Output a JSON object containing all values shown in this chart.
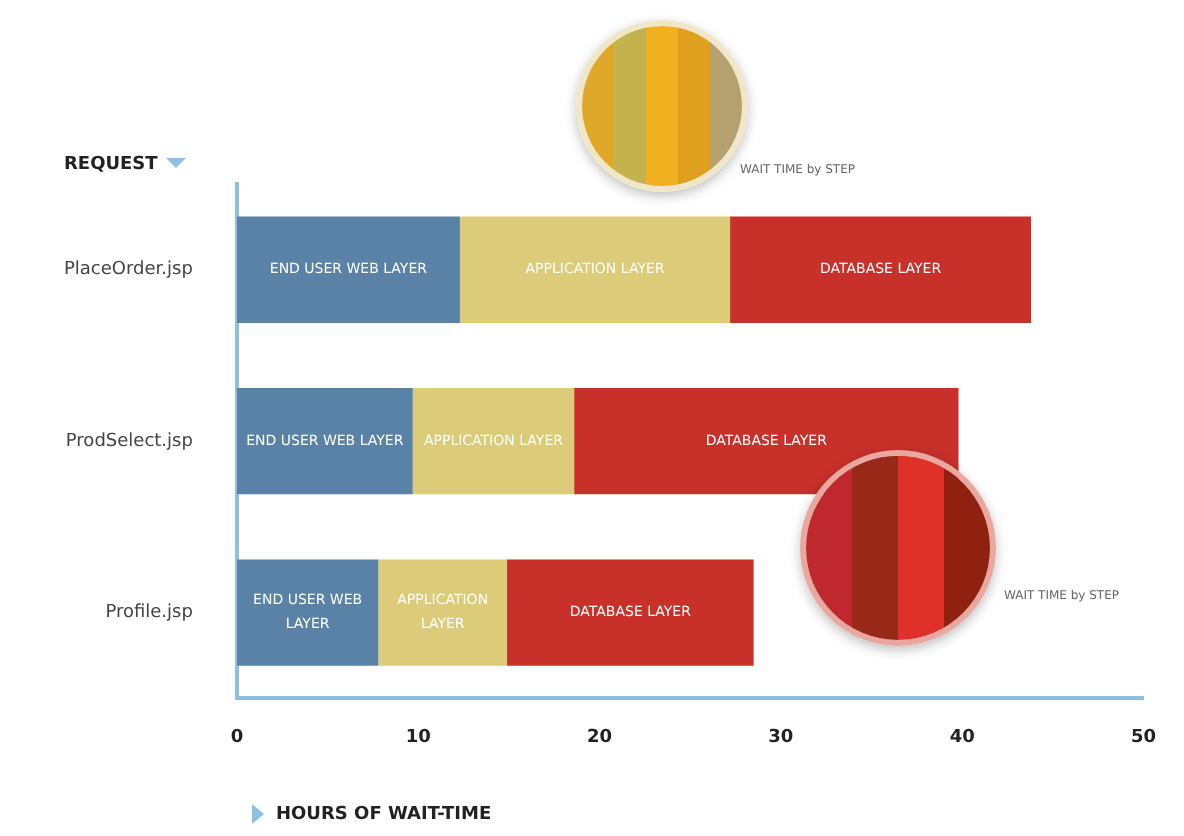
{
  "chart_data": {
    "type": "bar",
    "orientation": "horizontal",
    "stacked": true,
    "categories": [
      "PlaceOrder.jsp",
      "ProdSelect.jsp",
      "Profile.jsp"
    ],
    "series": [
      {
        "name": "END USER WEB LAYER",
        "color": "#5a82a6",
        "values": [
          12.3,
          9.7,
          7.8
        ]
      },
      {
        "name": "APPLICATION LAYER",
        "color": "#dccb78",
        "values": [
          14.9,
          8.9,
          7.1
        ]
      },
      {
        "name": "DATABASE LAYER",
        "color": "#c8302a",
        "values": [
          16.6,
          21.2,
          13.6
        ]
      }
    ],
    "xlim": [
      0,
      50
    ],
    "xticks": [
      0,
      10,
      20,
      30,
      40,
      50
    ],
    "xlabel": "HOURS OF WAIT-TIME",
    "ylabel": "REQUEST",
    "annotations": [
      "WAIT TIME by STEP",
      "WAIT TIME by STEP"
    ],
    "grid": false,
    "legend": false
  }
}
